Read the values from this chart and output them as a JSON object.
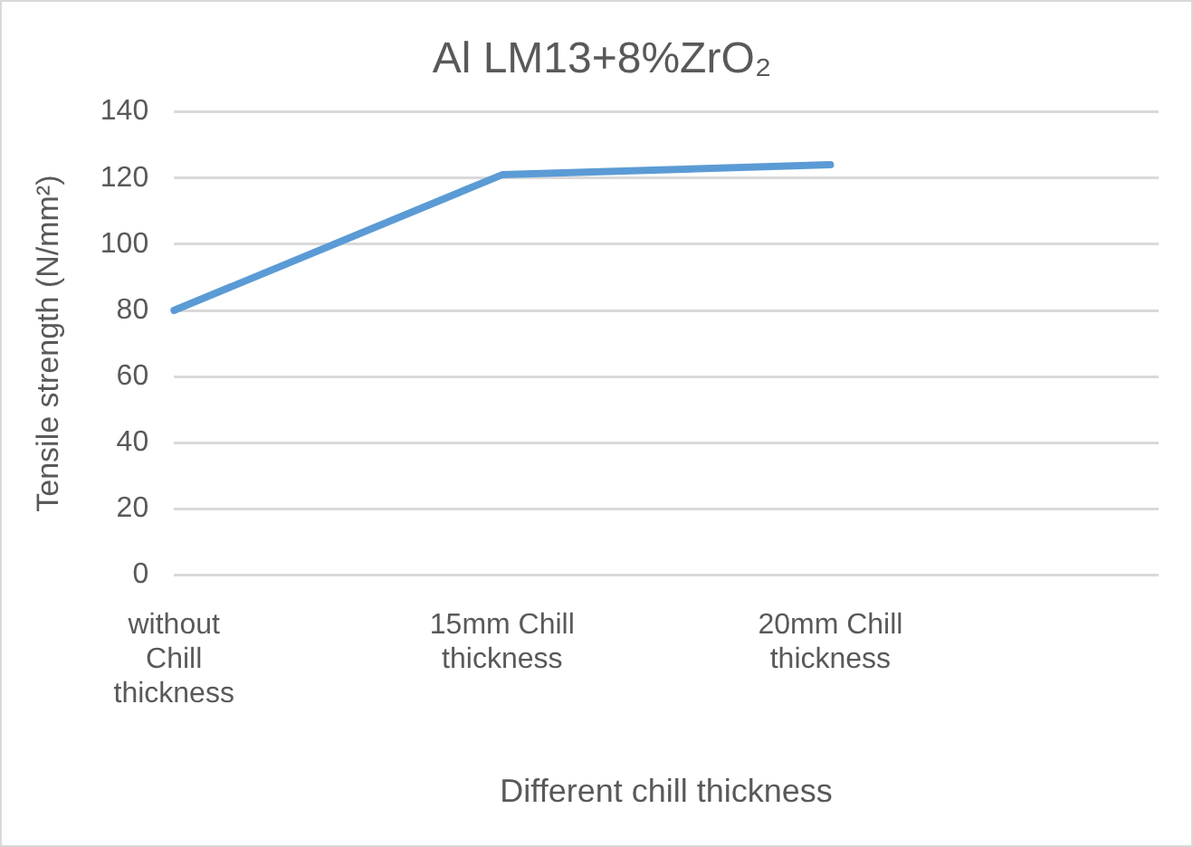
{
  "chart_data": {
    "type": "line",
    "title": "Al LM13+8%ZrO₂",
    "xlabel": "Different chill thickness",
    "ylabel": "Tensile strength (N/mm²)",
    "categories": [
      "without Chill thickness",
      "15mm Chill thickness",
      "20mm Chill thickness",
      null
    ],
    "series": [
      {
        "color": "#5b9bd5",
        "values": [
          80,
          121,
          124,
          null
        ]
      }
    ],
    "ylim": [
      0,
      140
    ],
    "yticks": [
      0,
      20,
      40,
      60,
      80,
      100,
      120,
      140
    ],
    "grid": "y",
    "legend": false,
    "marker": "none",
    "line_style": "solid"
  }
}
